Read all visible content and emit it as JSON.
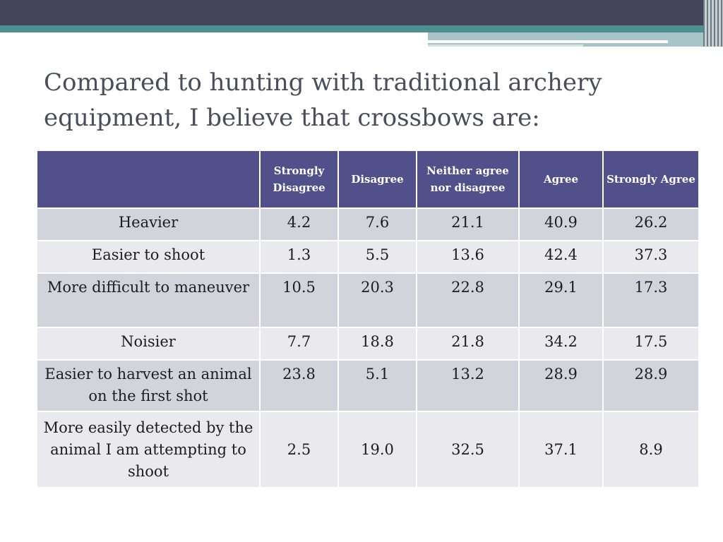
{
  "slide": {
    "title": "Compared to hunting with traditional archery equipment, I believe that crossbows are:"
  },
  "table": {
    "headers": [
      "",
      "Strongly Disagree",
      "Disagree",
      "Neither agree nor disagree",
      "Agree",
      "Strongly Agree"
    ],
    "rows": [
      {
        "label": "Heavier",
        "values": [
          "4.2",
          "7.6",
          "21.1",
          "40.9",
          "26.2"
        ]
      },
      {
        "label": "Easier to shoot",
        "values": [
          "1.3",
          "5.5",
          "13.6",
          "42.4",
          "37.3"
        ]
      },
      {
        "label": "More difficult to maneuver",
        "values": [
          "10.5",
          "20.3",
          "22.8",
          "29.1",
          "17.3"
        ]
      },
      {
        "label": "Noisier",
        "values": [
          "7.7",
          "18.8",
          "21.8",
          "34.2",
          "17.5"
        ]
      },
      {
        "label": "Easier to harvest an animal on the first shot",
        "values": [
          "23.8",
          "5.1",
          "13.2",
          "28.9",
          "28.9"
        ]
      },
      {
        "label": "More easily detected by the animal I am attempting to shoot",
        "values": [
          "2.5",
          "19.0",
          "32.5",
          "37.1",
          "8.9"
        ]
      }
    ]
  },
  "colors": {
    "header_bg": "#51508a",
    "row_odd": "#d2d4dc",
    "row_even": "#e9e9ee",
    "band_dark": "#44445a",
    "band_teal": "#4e8f8f"
  }
}
